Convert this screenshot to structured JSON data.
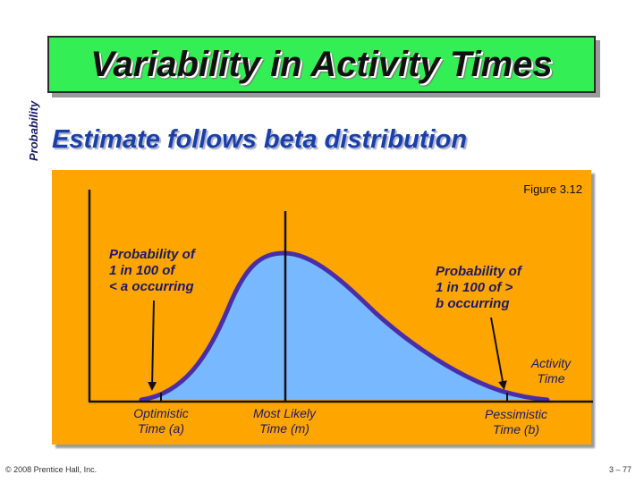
{
  "slide": {
    "title": "Variability in Activity Times",
    "subtitle": "Estimate follows beta distribution",
    "figure_label": "Figure 3.12",
    "footer_left": "© 2008 Prentice Hall, Inc.",
    "footer_right": "3 – 77"
  },
  "diagram": {
    "y_axis_label": "Probability",
    "note_left": "Probability of\n1 in 100 of\n< a occurring",
    "note_right": "Probability of\n1 in 100 of >\nb occurring",
    "activity_time_label": "Activity\nTime",
    "optimistic_label": "Optimistic\nTime (a)",
    "most_likely_label": "Most Likely\nTime (m)",
    "pessimistic_label": "Pessimistic\nTime (b)"
  },
  "colors": {
    "title_bg": "#33ee55",
    "panel_bg": "#ffa500",
    "curve_fill": "#77b8ff",
    "curve_stroke": "#4a2ea8",
    "text_blue": "#1a3fa8"
  }
}
